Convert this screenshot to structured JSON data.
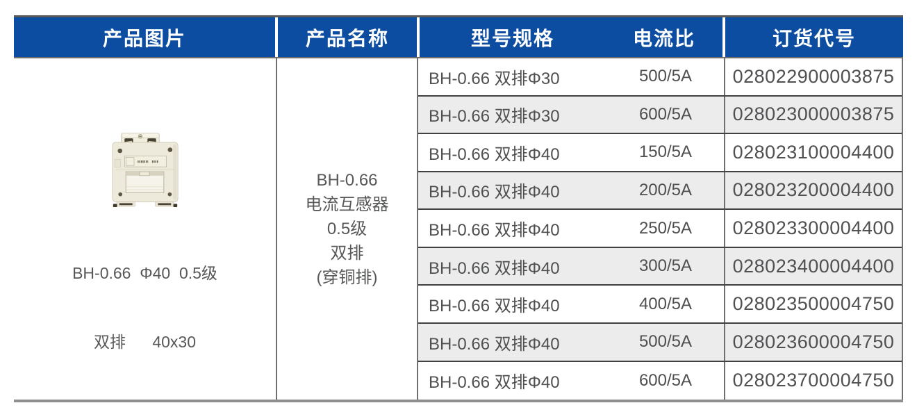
{
  "table": {
    "header": {
      "product_image": "产品图片",
      "product_name": "产品名称",
      "model_spec": "型号规格",
      "current_ratio": "电流比",
      "order_code": "订货代号"
    },
    "product": {
      "image_caption_line1": "BH-0.66  Φ40  0.5级",
      "image_caption_line2": "双排      40x30",
      "name_lines": [
        "BH-0.66",
        "电流互感器",
        "0.5级",
        "双排",
        "(穿铜排)"
      ]
    },
    "rows": [
      {
        "model": "BH-0.66 双排Φ30",
        "ratio": "500/5A",
        "code": "028022900003875"
      },
      {
        "model": "BH-0.66 双排Φ30",
        "ratio": "600/5A",
        "code": "028023000003875"
      },
      {
        "model": "BH-0.66 双排Φ40",
        "ratio": "150/5A",
        "code": "028023100004400"
      },
      {
        "model": "BH-0.66 双排Φ40",
        "ratio": "200/5A",
        "code": "028023200004400"
      },
      {
        "model": "BH-0.66 双排Φ40",
        "ratio": "250/5A",
        "code": "028023300004400"
      },
      {
        "model": "BH-0.66 双排Φ40",
        "ratio": "300/5A",
        "code": "028023400004400"
      },
      {
        "model": "BH-0.66 双排Φ40",
        "ratio": "400/5A",
        "code": "028023500004750"
      },
      {
        "model": "BH-0.66 双排Φ40",
        "ratio": "500/5A",
        "code": "028023600004750"
      },
      {
        "model": "BH-0.66 双排Φ40",
        "ratio": "600/5A",
        "code": "028023700004750"
      }
    ],
    "colors": {
      "header_bg": "#0c4da2",
      "header_text": "#ffffff",
      "row_alt_bg": "#ececec",
      "row_text": "#4f5052",
      "grid_dark": "#414141",
      "grid_mid": "#6f6f6f"
    }
  }
}
